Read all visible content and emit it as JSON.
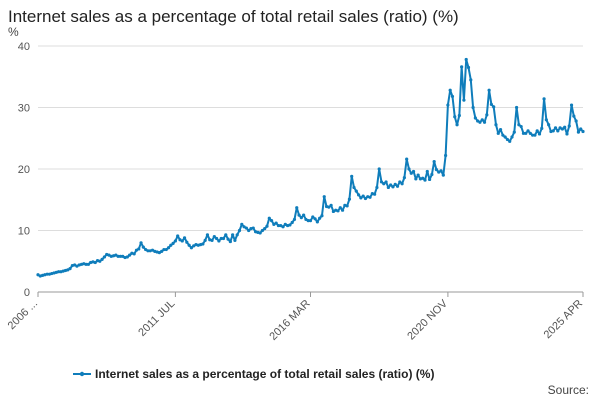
{
  "chart_data": {
    "type": "line",
    "title": "Internet sales as a percentage of total retail sales (ratio) (%)",
    "y_unit": "%",
    "ylim": [
      0,
      40
    ],
    "y_ticks": [
      0,
      10,
      20,
      30,
      40
    ],
    "x_tick_labels": [
      "2006 ...",
      "2011 JUL",
      "2016 MAR",
      "2020 NOV",
      "2025 APR"
    ],
    "grid": "horizontal",
    "legend_position": "bottom",
    "series": [
      {
        "name": "Internet sales as a percentage of total retail sales (ratio) (%)",
        "color": "#0f7dbb",
        "x_start": "2006 NOV",
        "x_end": "2025 APR",
        "frequency": "monthly",
        "values": [
          2.8,
          2.6,
          2.7,
          2.8,
          2.9,
          2.9,
          3.0,
          3.1,
          3.2,
          3.3,
          3.3,
          3.4,
          3.5,
          3.6,
          3.8,
          4.3,
          4.4,
          4.2,
          4.4,
          4.5,
          4.6,
          4.5,
          4.5,
          4.8,
          4.9,
          4.8,
          5.1,
          5.0,
          5.3,
          5.7,
          6.1,
          6.0,
          5.8,
          5.9,
          6.0,
          5.8,
          5.8,
          5.8,
          5.6,
          5.7,
          6.0,
          6.3,
          6.2,
          6.8,
          7.0,
          8.0,
          7.3,
          6.9,
          6.7,
          6.7,
          6.8,
          6.6,
          6.5,
          6.4,
          6.6,
          6.9,
          6.9,
          7.2,
          7.6,
          7.9,
          8.3,
          9.1,
          8.5,
          8.3,
          8.8,
          8.1,
          7.6,
          7.2,
          7.5,
          7.7,
          7.6,
          7.7,
          7.8,
          8.4,
          9.3,
          8.5,
          8.4,
          9.0,
          8.7,
          8.3,
          8.7,
          8.7,
          9.3,
          8.6,
          8.2,
          9.3,
          8.4,
          9.3,
          10.0,
          11.0,
          10.6,
          10.4,
          10.0,
          10.3,
          10.4,
          9.8,
          9.7,
          9.6,
          10.0,
          10.3,
          10.7,
          12.0,
          11.6,
          11.0,
          11.2,
          10.8,
          10.8,
          10.6,
          11.0,
          10.8,
          10.9,
          11.3,
          11.8,
          13.7,
          12.5,
          12.1,
          12.5,
          11.8,
          11.6,
          11.6,
          12.2,
          11.9,
          11.4,
          12.0,
          12.4,
          15.5,
          13.9,
          13.8,
          14.1,
          13.1,
          13.3,
          13.2,
          13.7,
          13.3,
          14.1,
          14.0,
          15.1,
          18.8,
          17.0,
          16.4,
          15.8,
          15.3,
          15.6,
          15.2,
          15.5,
          15.4,
          16.0,
          15.9,
          17.0,
          20.0,
          17.9,
          17.6,
          17.9,
          17.0,
          17.4,
          17.1,
          17.5,
          17.2,
          17.9,
          17.6,
          18.6,
          21.6,
          20.0,
          19.3,
          19.6,
          18.4,
          19.0,
          18.4,
          18.5,
          18.2,
          19.6,
          18.3,
          19.1,
          21.2,
          19.9,
          19.5,
          19.7,
          19.0,
          22.2,
          30.4,
          32.8,
          31.8,
          28.5,
          27.2,
          28.7,
          36.6,
          31.2,
          37.8,
          36.5,
          34.5,
          30.0,
          28.3,
          27.8,
          27.6,
          28.0,
          27.6,
          28.8,
          32.8,
          30.5,
          30.1,
          27.2,
          25.8,
          26.4,
          25.5,
          25.2,
          24.8,
          24.5,
          25.2,
          26.0,
          30.0,
          27.2,
          26.9,
          25.8,
          25.8,
          26.2,
          25.8,
          25.5,
          25.5,
          26.2,
          25.7,
          26.6,
          31.4,
          28.0,
          27.2,
          26.1,
          26.2,
          26.7,
          26.2,
          26.7,
          26.5,
          26.8,
          25.7,
          27.0,
          30.4,
          28.6,
          27.8,
          26.0,
          26.5,
          26.1
        ]
      }
    ]
  },
  "legend": {
    "label": "Internet sales as a percentage of total retail sales (ratio) (%)"
  },
  "source_label": "Source:"
}
